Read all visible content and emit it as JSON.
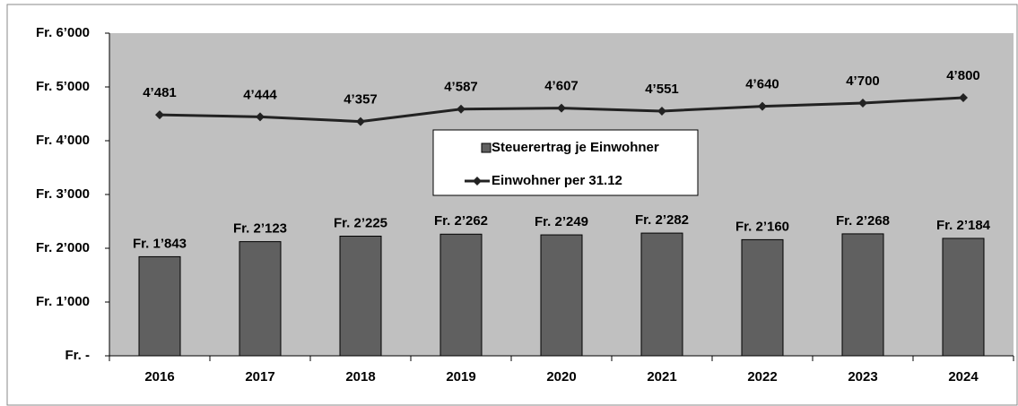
{
  "chart_data": {
    "type": "bar",
    "categories": [
      "2016",
      "2017",
      "2018",
      "2019",
      "2020",
      "2021",
      "2022",
      "2023",
      "2024"
    ],
    "series": [
      {
        "name": "Steuerertrag je Einwohner",
        "type": "bar",
        "color": "#606060",
        "values": [
          1843,
          2123,
          2225,
          2262,
          2249,
          2282,
          2160,
          2268,
          2184
        ],
        "value_labels": [
          "Fr. 1’843",
          "Fr. 2’123",
          "Fr. 2’225",
          "Fr. 2’262",
          "Fr. 2’249",
          "Fr. 2’282",
          "Fr. 2’160",
          "Fr. 2’268",
          "Fr. 2’184"
        ]
      },
      {
        "name": "Einwohner per 31.12",
        "type": "line",
        "color": "#222222",
        "values": [
          4481,
          4444,
          4357,
          4587,
          4607,
          4551,
          4640,
          4700,
          4800
        ],
        "value_labels": [
          "4’481",
          "4’444",
          "4’357",
          "4’587",
          "4’607",
          "4’551",
          "4’640",
          "4’700",
          "4’800"
        ]
      }
    ],
    "ylim": [
      0,
      6000
    ],
    "yticks": [
      {
        "value": 0,
        "label": "Fr. -"
      },
      {
        "value": 1000,
        "label": "Fr. 1’000"
      },
      {
        "value": 2000,
        "label": "Fr. 2’000"
      },
      {
        "value": 3000,
        "label": "Fr. 3’000"
      },
      {
        "value": 4000,
        "label": "Fr. 4’000"
      },
      {
        "value": 5000,
        "label": "Fr. 5’000"
      },
      {
        "value": 6000,
        "label": "Fr. 6’000"
      }
    ],
    "plot_background": "#c0c0c0"
  }
}
